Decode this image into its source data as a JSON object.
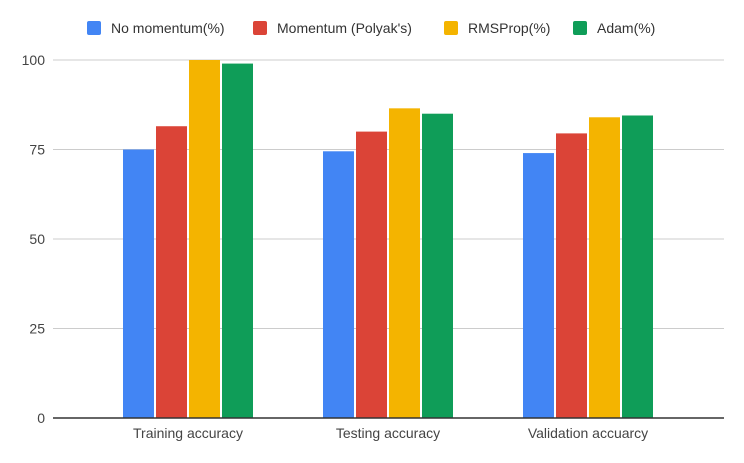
{
  "chart_data": {
    "type": "bar",
    "categories": [
      "Training accuracy",
      "Testing accuracy",
      "Validation accuarcy"
    ],
    "series": [
      {
        "name": "No momentum(%)",
        "color": "#4285F4",
        "values": [
          75,
          74.5,
          74
        ]
      },
      {
        "name": "Momentum (Polyak's)",
        "color": "#DB4437",
        "values": [
          81.5,
          80,
          79.5
        ]
      },
      {
        "name": "RMSProp(%)",
        "color": "#F4B400",
        "values": [
          100,
          86.5,
          84
        ]
      },
      {
        "name": "Adam(%)",
        "color": "#0F9D58",
        "values": [
          99,
          85,
          84.5
        ]
      }
    ],
    "ylim": [
      0,
      100
    ],
    "yticks": [
      0,
      25,
      50,
      75,
      100
    ],
    "grid": true,
    "legend_position": "top",
    "title": "",
    "xlabel": "",
    "ylabel": ""
  }
}
